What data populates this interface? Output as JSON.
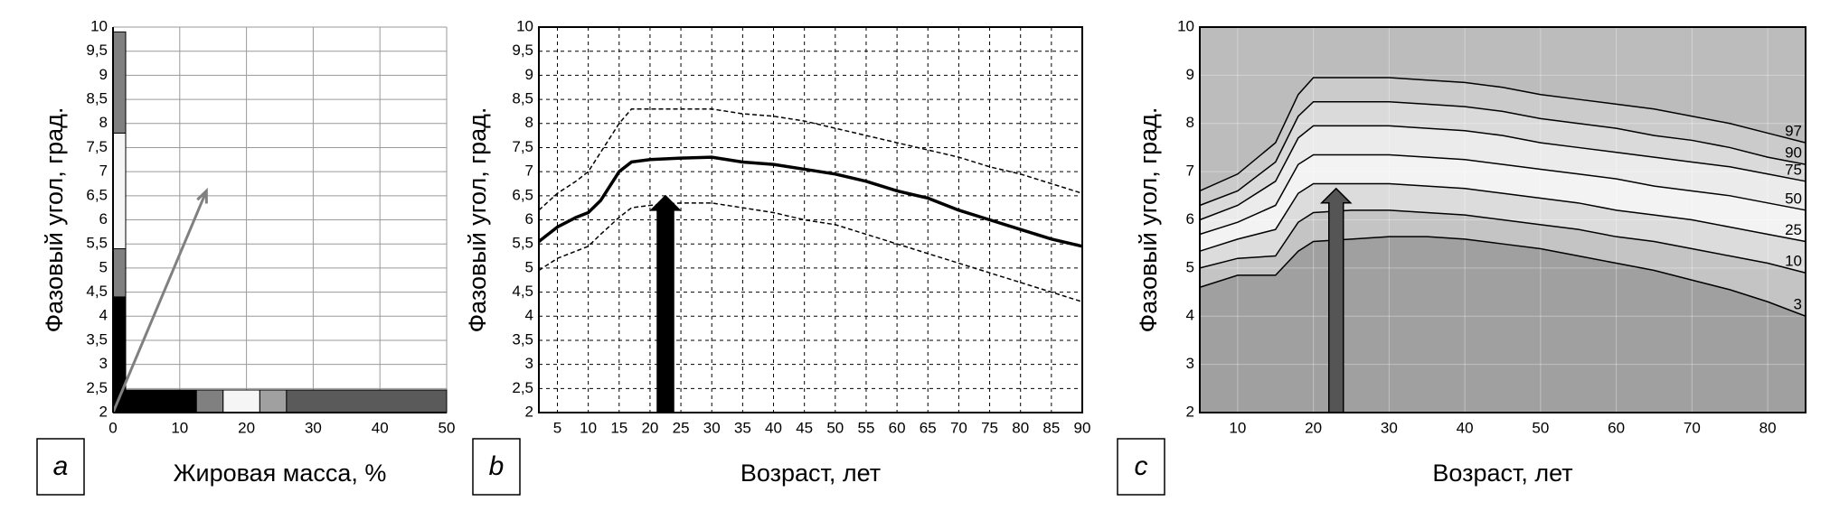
{
  "chart_data": [
    {
      "type": "band",
      "panel_label": "a",
      "xlabel": "Жировая масса, %",
      "ylabel": "Фазовый угол, град.",
      "xlim": [
        0,
        50
      ],
      "xticks": [
        0,
        10,
        20,
        30,
        40,
        50
      ],
      "ylim": [
        2,
        10
      ],
      "yticks": [
        2,
        {
          "value": 2.5,
          "label": "2,5"
        },
        3,
        {
          "value": 3.5,
          "label": "3,5"
        },
        4,
        {
          "value": 4.5,
          "label": "4,5"
        },
        5,
        {
          "value": 5.5,
          "label": "5,5"
        },
        6,
        {
          "value": 6.5,
          "label": "6,5"
        },
        7,
        {
          "value": 7.5,
          "label": "7,5"
        },
        8,
        {
          "value": 8.5,
          "label": "8,5"
        },
        9,
        {
          "value": 9.5,
          "label": "9,5"
        },
        10
      ],
      "grid": "solid",
      "y_bands": [
        {
          "from": 2,
          "to": 4.4,
          "color": "#000000"
        },
        {
          "from": 4.4,
          "to": 5.4,
          "color": "#808080"
        },
        {
          "from": 5.4,
          "to": 7.8,
          "color": "#f5f5f5"
        },
        {
          "from": 7.8,
          "to": 9.9,
          "color": "#808080"
        }
      ],
      "x_bands": [
        {
          "from": 0,
          "to": 12.5,
          "color": "#000000"
        },
        {
          "from": 12.5,
          "to": 16.5,
          "color": "#808080"
        },
        {
          "from": 16.5,
          "to": 22,
          "color": "#f5f5f5"
        },
        {
          "from": 22,
          "to": 26,
          "color": "#a0a0a0"
        },
        {
          "from": 26,
          "to": 50,
          "color": "#5a5a5a"
        }
      ],
      "arrow": {
        "x0": 0,
        "y0": 2,
        "x1": 14,
        "y1": 6.6,
        "color": "#808080"
      }
    },
    {
      "type": "line",
      "panel_label": "b",
      "xlabel": "Возраст, лет",
      "ylabel": "Фазовый угол, град.",
      "xlim": [
        2,
        90
      ],
      "xticks": [
        5,
        10,
        15,
        20,
        25,
        30,
        35,
        40,
        45,
        50,
        55,
        60,
        65,
        70,
        75,
        80,
        85,
        90
      ],
      "ylim": [
        2,
        10
      ],
      "yticks": [
        2,
        {
          "value": 2.5,
          "label": "2,5"
        },
        3,
        {
          "value": 3.5,
          "label": "3,5"
        },
        4,
        {
          "value": 4.5,
          "label": "4,5"
        },
        5,
        {
          "value": 5.5,
          "label": "5,5"
        },
        6,
        {
          "value": 6.5,
          "label": "6,5"
        },
        7,
        {
          "value": 7.5,
          "label": "7,5"
        },
        8,
        {
          "value": 8.5,
          "label": "8,5"
        },
        9,
        {
          "value": 9.5,
          "label": "9,5"
        },
        10
      ],
      "grid": "dashed",
      "x": [
        2,
        5,
        8,
        10,
        12,
        15,
        17,
        20,
        25,
        30,
        35,
        40,
        45,
        50,
        55,
        60,
        65,
        70,
        75,
        80,
        85,
        90
      ],
      "series": [
        {
          "color": "#000000",
          "style": "dashed",
          "values": [
            6.2,
            6.55,
            6.8,
            7.0,
            7.4,
            8.0,
            8.3,
            8.3,
            8.3,
            8.3,
            8.2,
            8.15,
            8.05,
            7.9,
            7.75,
            7.6,
            7.45,
            7.3,
            7.1,
            6.95,
            6.75,
            6.55
          ]
        },
        {
          "color": "#000000",
          "style": "solid",
          "values": [
            5.55,
            5.85,
            6.05,
            6.15,
            6.4,
            7.0,
            7.2,
            7.25,
            7.28,
            7.3,
            7.2,
            7.15,
            7.05,
            6.95,
            6.8,
            6.6,
            6.45,
            6.2,
            6.0,
            5.8,
            5.6,
            5.45
          ]
        },
        {
          "color": "#000000",
          "style": "dashed",
          "values": [
            4.95,
            5.2,
            5.35,
            5.45,
            5.7,
            6.05,
            6.25,
            6.3,
            6.35,
            6.35,
            6.25,
            6.15,
            6.0,
            5.9,
            5.7,
            5.5,
            5.3,
            5.1,
            4.9,
            4.7,
            4.5,
            4.3
          ]
        }
      ],
      "arrow": {
        "x0": 22.5,
        "y0": 2,
        "x1": 22.5,
        "y1": 6.5,
        "color": "#000000"
      }
    },
    {
      "type": "area",
      "panel_label": "c",
      "xlabel": "Возраст, лет",
      "ylabel": "Фазовый угол, град.",
      "xlim": [
        5,
        85
      ],
      "xticks": [
        10,
        20,
        30,
        40,
        50,
        60,
        70,
        80
      ],
      "ylim": [
        2,
        10
      ],
      "yticks": [
        2,
        3,
        4,
        5,
        6,
        7,
        8,
        9,
        10
      ],
      "grid": "faint",
      "background": "#bcbcbc",
      "x": [
        5,
        10,
        15,
        18,
        20,
        25,
        30,
        35,
        40,
        45,
        50,
        55,
        60,
        65,
        70,
        75,
        80,
        85
      ],
      "series": [
        {
          "name": "97",
          "color": "#cbcbcb",
          "values": [
            6.6,
            6.95,
            7.6,
            8.6,
            8.95,
            8.95,
            8.95,
            8.9,
            8.85,
            8.75,
            8.6,
            8.5,
            8.4,
            8.3,
            8.15,
            8.0,
            7.8,
            7.6
          ]
        },
        {
          "name": "90",
          "color": "#dadada",
          "values": [
            6.3,
            6.6,
            7.2,
            8.15,
            8.45,
            8.45,
            8.45,
            8.4,
            8.35,
            8.25,
            8.1,
            8.0,
            7.9,
            7.75,
            7.65,
            7.5,
            7.3,
            7.15
          ]
        },
        {
          "name": "75",
          "color": "#ebebeb",
          "values": [
            6.0,
            6.3,
            6.8,
            7.7,
            7.95,
            7.95,
            7.95,
            7.9,
            7.85,
            7.75,
            7.6,
            7.5,
            7.4,
            7.3,
            7.2,
            7.1,
            6.95,
            6.8
          ]
        },
        {
          "name": "50",
          "color": "#f3f3f3",
          "values": [
            5.7,
            5.95,
            6.3,
            7.15,
            7.35,
            7.35,
            7.35,
            7.3,
            7.25,
            7.15,
            7.05,
            6.95,
            6.85,
            6.7,
            6.6,
            6.5,
            6.35,
            6.2
          ]
        },
        {
          "name": "25",
          "color": "#dcdcdc",
          "values": [
            5.35,
            5.6,
            5.8,
            6.55,
            6.75,
            6.75,
            6.75,
            6.7,
            6.65,
            6.55,
            6.45,
            6.35,
            6.2,
            6.1,
            6.0,
            5.85,
            5.7,
            5.55
          ]
        },
        {
          "name": "10",
          "color": "#c4c4c4",
          "values": [
            5.0,
            5.2,
            5.25,
            5.95,
            6.15,
            6.2,
            6.2,
            6.15,
            6.1,
            6.0,
            5.9,
            5.8,
            5.65,
            5.55,
            5.4,
            5.25,
            5.1,
            4.9
          ]
        },
        {
          "name": "3",
          "color": "#a0a0a0",
          "values": [
            4.6,
            4.85,
            4.85,
            5.35,
            5.55,
            5.6,
            5.65,
            5.65,
            5.6,
            5.5,
            5.4,
            5.25,
            5.1,
            4.95,
            4.75,
            4.55,
            4.3,
            4.0
          ]
        }
      ],
      "arrow": {
        "x0": 23,
        "y0": 2,
        "x1": 23,
        "y1": 6.65,
        "color": "#555555"
      }
    }
  ]
}
